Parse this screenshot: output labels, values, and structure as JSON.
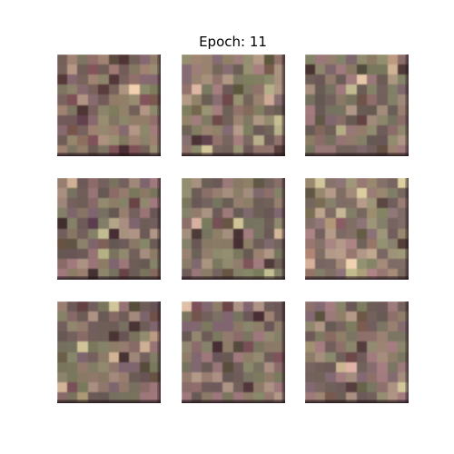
{
  "figure": {
    "title": "Epoch: 11"
  },
  "samples": [
    {
      "seed": 11,
      "tint": "#8c7066"
    },
    {
      "seed": 23,
      "tint": "#8a7a68"
    },
    {
      "seed": 37,
      "tint": "#7a6a60"
    },
    {
      "seed": 41,
      "tint": "#7a6660"
    },
    {
      "seed": 53,
      "tint": "#7c6e62"
    },
    {
      "seed": 67,
      "tint": "#9c8878"
    },
    {
      "seed": 71,
      "tint": "#7a6660"
    },
    {
      "seed": 83,
      "tint": "#806a66"
    },
    {
      "seed": 97,
      "tint": "#857268"
    }
  ]
}
